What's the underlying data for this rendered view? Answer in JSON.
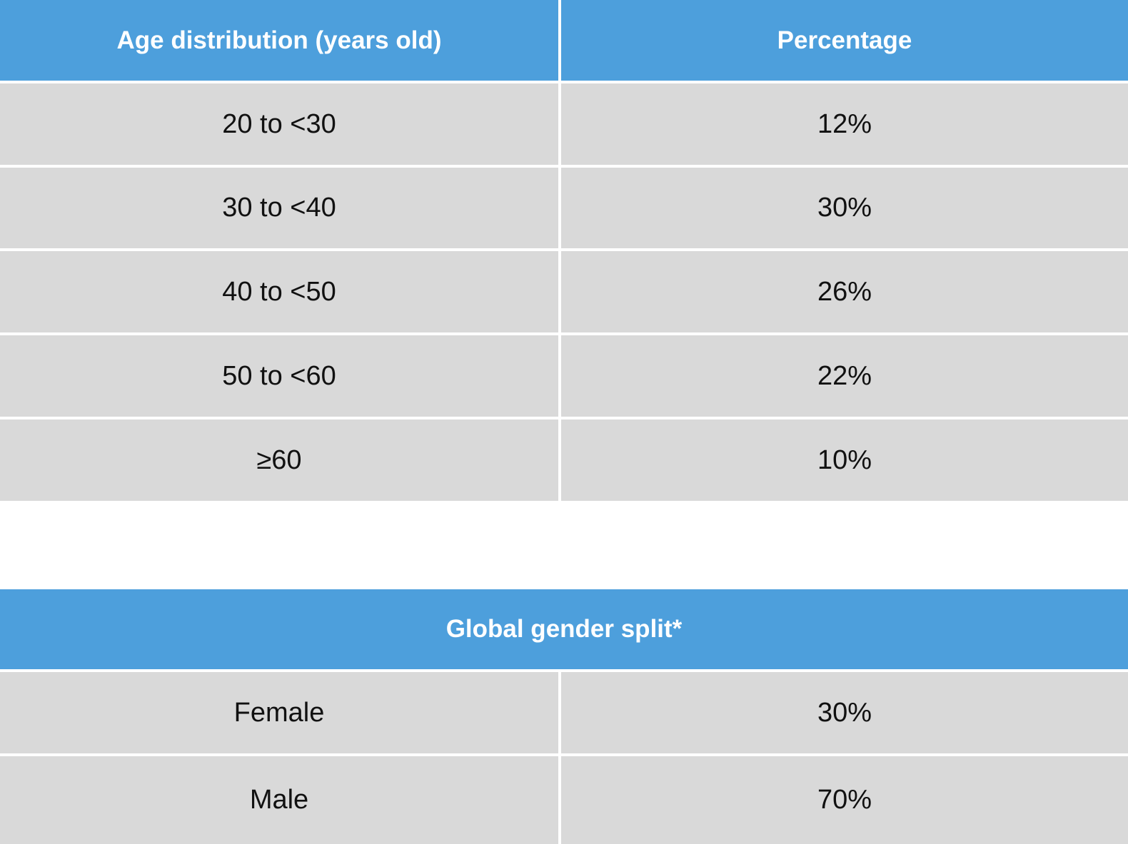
{
  "age_table": {
    "headers": [
      "Age distribution (years old)",
      "Percentage"
    ],
    "rows": [
      {
        "age": "20 to <30",
        "percentage": "12%"
      },
      {
        "age": "30 to <40",
        "percentage": "30%"
      },
      {
        "age": "40 to <50",
        "percentage": "26%"
      },
      {
        "age": "50 to <60",
        "percentage": "22%"
      },
      {
        "age": "≥60",
        "percentage": "10%"
      }
    ]
  },
  "gender_table": {
    "header": "Global gender split*",
    "rows": [
      {
        "gender": "Female",
        "percentage": "30%"
      },
      {
        "gender": "Male",
        "percentage": "70%"
      }
    ]
  },
  "colors": {
    "header_bg": "#4d9fdc",
    "row_bg": "#d9d9d9",
    "border": "#ffffff"
  }
}
